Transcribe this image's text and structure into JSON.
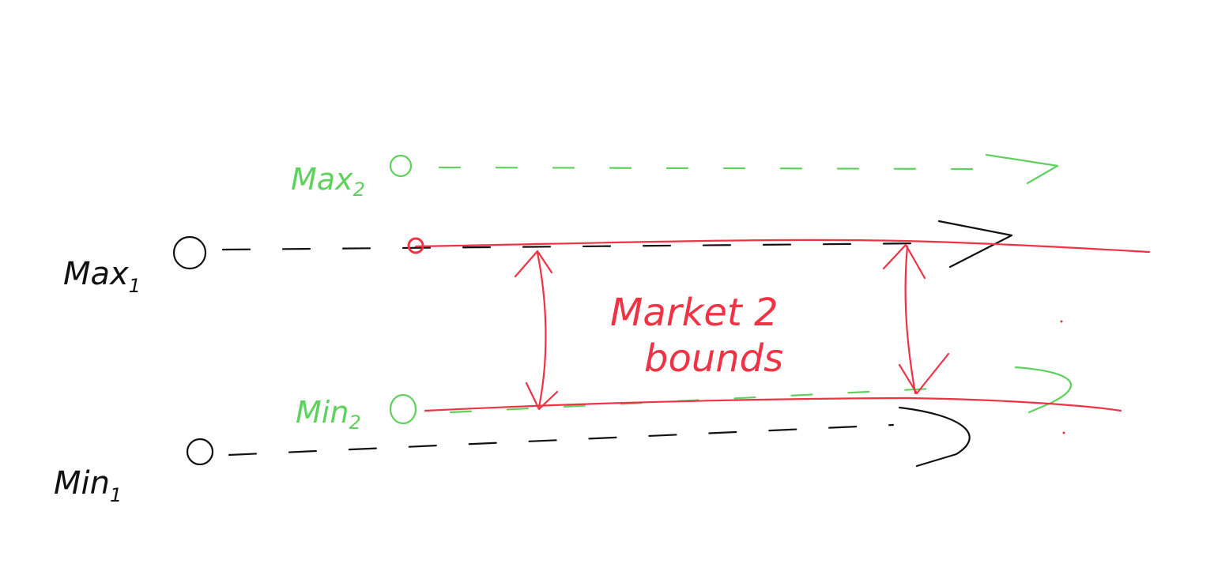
{
  "labels": {
    "max1": {
      "text": "Max",
      "sub": "1"
    },
    "min1": {
      "text": "Min",
      "sub": "1"
    },
    "max2": {
      "text": "Max",
      "sub": "2"
    },
    "min2": {
      "text": "Min",
      "sub": "2"
    },
    "bounds_line1": "Market 2",
    "bounds_line2": "bounds"
  },
  "colors": {
    "series1": "#111111",
    "series2": "#5fd15f",
    "bounds": "#ee3344"
  }
}
